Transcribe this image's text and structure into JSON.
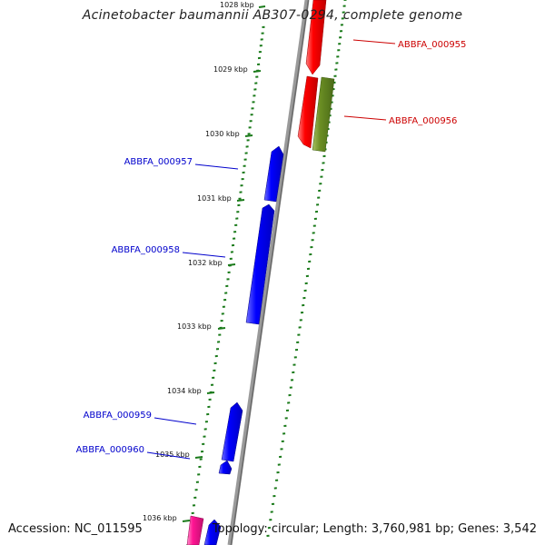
{
  "title": "Acinetobacter baumannii AB307-0294, complete genome",
  "accession_text": "Accession: NC_011595",
  "stats_text": "Topology: circular; Length: 3,760,981 bp; Genes: 3,542",
  "colors": {
    "backbone": "#8a8a8a",
    "tick": "#1a7a1a",
    "forward_gene": "#0000ff",
    "reverse_gene": "#ff0000",
    "rna_gene": "#6b8e23",
    "other_gene": "#ff1493",
    "blue_label": "#0000cc",
    "red_label": "#cc0000"
  },
  "ticks": [
    {
      "label": "1028 kbp"
    },
    {
      "label": "1029 kbp"
    },
    {
      "label": "1030 kbp"
    },
    {
      "label": "1031 kbp"
    },
    {
      "label": "1032 kbp"
    },
    {
      "label": "1033 kbp"
    },
    {
      "label": "1034 kbp"
    },
    {
      "label": "1035 kbp"
    },
    {
      "label": "1036 kbp"
    }
  ],
  "genes": [
    {
      "name": "ABBFA_000955",
      "strand": "reverse",
      "type": "cds"
    },
    {
      "name": "ABBFA_000956",
      "strand": "reverse",
      "type": "cds"
    },
    {
      "name": "",
      "strand": "reverse",
      "type": "rna"
    },
    {
      "name": "ABBFA_000957",
      "strand": "forward",
      "type": "cds"
    },
    {
      "name": "ABBFA_000958",
      "strand": "forward",
      "type": "cds"
    },
    {
      "name": "ABBFA_000959",
      "strand": "forward",
      "type": "cds"
    },
    {
      "name": "ABBFA_000960",
      "strand": "forward",
      "type": "cds"
    },
    {
      "name": "",
      "strand": "forward",
      "type": "other"
    },
    {
      "name": "",
      "strand": "forward",
      "type": "cds"
    }
  ]
}
